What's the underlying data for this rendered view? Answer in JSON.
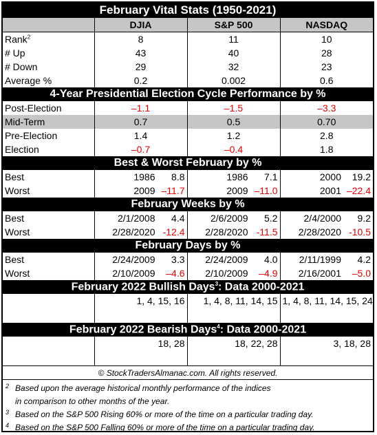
{
  "title": "February Vital Stats (1950-2021)",
  "columns": [
    "DJIA",
    "S&P 500",
    "NASDAQ"
  ],
  "vital": [
    {
      "label": "Rank",
      "sup": "2",
      "values": [
        "8",
        "11",
        "10"
      ]
    },
    {
      "label": "# Up",
      "sup": "",
      "values": [
        "43",
        "40",
        "28"
      ]
    },
    {
      "label": "# Down",
      "sup": "",
      "values": [
        "29",
        "32",
        "23"
      ]
    },
    {
      "label": "Average %",
      "sup": "",
      "values": [
        "0.2",
        "0.002",
        "0.6"
      ]
    }
  ],
  "election": {
    "title": "4-Year Presidential Election Cycle Performance by %",
    "rows": [
      {
        "label": "Post-Election",
        "values": [
          "–1.1",
          "–1.5",
          "–3.3"
        ]
      },
      {
        "label": "Mid-Term",
        "values": [
          "0.7",
          "0.5",
          "0.70"
        ]
      },
      {
        "label": "Pre-Election",
        "values": [
          "1.4",
          "1.2",
          "2.8"
        ]
      },
      {
        "label": "Election",
        "values": [
          "–0.7",
          "–0.4",
          "1.8"
        ]
      }
    ]
  },
  "best_worst": {
    "title": "Best & Worst February by %",
    "rows": [
      {
        "label": "Best",
        "cells": [
          [
            "1986",
            "8.8"
          ],
          [
            "1986",
            "7.1"
          ],
          [
            "2000",
            "19.2"
          ]
        ]
      },
      {
        "label": "Worst",
        "cells": [
          [
            "2009",
            "–11.7"
          ],
          [
            "2009",
            "–11.0"
          ],
          [
            "2001",
            "–22.4"
          ]
        ]
      }
    ]
  },
  "weeks": {
    "title": "February Weeks by %",
    "rows": [
      {
        "label": "Best",
        "cells": [
          [
            "2/1/2008",
            "4.4"
          ],
          [
            "2/6/2009",
            "5.2"
          ],
          [
            "2/4/2000",
            "9.2"
          ]
        ]
      },
      {
        "label": "Worst",
        "cells": [
          [
            "2/28/2020",
            "-12.4"
          ],
          [
            "2/28/2020",
            "-11.5"
          ],
          [
            "2/28/2020",
            "-10.5"
          ]
        ]
      }
    ]
  },
  "days": {
    "title": "February Days by %",
    "rows": [
      {
        "label": "Best",
        "cells": [
          [
            "2/24/2009",
            "3.3"
          ],
          [
            "2/24/2009",
            "4.0"
          ],
          [
            "2/11/1999",
            "4.2"
          ]
        ]
      },
      {
        "label": "Worst",
        "cells": [
          [
            "2/10/2009",
            "–4.6"
          ],
          [
            "2/10/2009",
            "–4.9"
          ],
          [
            "2/16/2001",
            "–5.0"
          ]
        ]
      }
    ]
  },
  "bullish": {
    "title_pre": "February 2022 Bullish Days",
    "title_sup": "3",
    "title_post": ": Data 2000-2021",
    "values": [
      "1, 4, 15, 16",
      "1, 4, 8, 11, 14, 15",
      "1, 4, 8, 11, 14, 15, 24"
    ]
  },
  "bearish": {
    "title_pre": "February 2022 Bearish Days",
    "title_sup": "4",
    "title_post": ": Data 2000-2021",
    "values": [
      "18, 28",
      "18, 22, 28",
      "3, 18, 28"
    ]
  },
  "copyright": "© StockTradersAlmanac.com. All rights reserved.",
  "notes": [
    {
      "mark": "2",
      "line1": "Based upon the average historical monthly performance of the indices",
      "line2": "in comparison to other months of the year."
    },
    {
      "mark": "3",
      "line1": "Based on the S&P 500 Rising 60% or more of the time on a particular trading day.",
      "line2": ""
    },
    {
      "mark": "4",
      "line1": "Based on the S&P 500 Falling 60% or more of the time on a particular trading day.",
      "line2": ""
    }
  ],
  "colors": {
    "header_bg": "#000000",
    "shade": "#c6c6c6",
    "negative": "#e00000"
  }
}
